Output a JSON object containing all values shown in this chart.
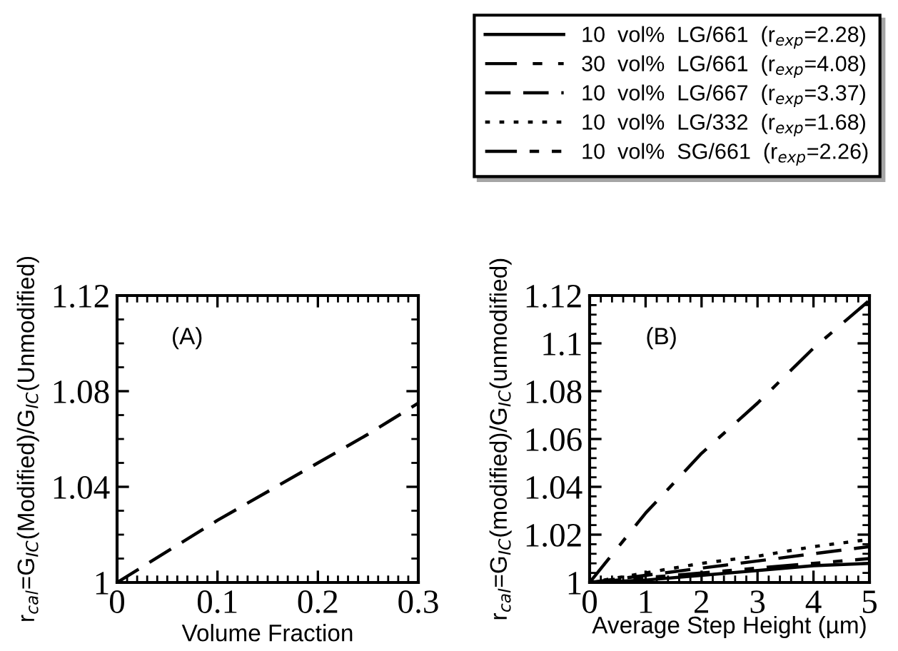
{
  "chart_data": [
    {
      "type": "line",
      "xlabel": "Volume Fraction",
      "ylabel": "r$_{cal}$=G$_{IC}$(Modified)/G$_{IC}$(Unmodified)",
      "annotations": [
        "(A)"
      ],
      "x": [
        0,
        0.05,
        0.1,
        0.15,
        0.2,
        0.25,
        0.3
      ],
      "series": [
        {
          "color": "#000000",
          "line_style": "dashed",
          "values": [
            1,
            1.013,
            1.026,
            1.038,
            1.05,
            1.062,
            1.075
          ]
        }
      ],
      "xlim": [
        0,
        0.3
      ],
      "xticks": [
        0,
        0.1,
        0.2,
        0.3
      ],
      "ylim": [
        1,
        1.12
      ],
      "yticks": [
        1,
        1.04,
        1.08,
        1.12
      ],
      "grid": false,
      "legend": false
    },
    {
      "type": "line",
      "xlabel": "Average Step Height (µm)",
      "ylabel": "r$_{cal}$=G$_{IC}$(modified)/G$_{IC}$(unmodified)",
      "annotations": [
        "(B)"
      ],
      "x": [
        0,
        1,
        2,
        3,
        4,
        5
      ],
      "series": [
        {
          "name": "10  vol%  LG/661  (r$_{exp}$=2.28)",
          "color": "#000000",
          "line_style": "solid",
          "values": [
            1,
            1.001,
            1.003,
            1.005,
            1.007,
            1.008
          ]
        },
        {
          "name": "30  vol%  LG/661  (r$_{exp}$=4.08)",
          "color": "#000000",
          "line_style": "dashdot",
          "values": [
            1,
            1.029,
            1.054,
            1.075,
            1.098,
            1.118
          ]
        },
        {
          "name": "10  vol%  LG/667  (r$_{exp}$=3.37)",
          "color": "#000000",
          "line_style": "dashed",
          "values": [
            1,
            1.003,
            1.006,
            1.009,
            1.012,
            1.015
          ]
        },
        {
          "name": "10  vol%  LG/332  (r$_{exp}$=1.68)",
          "color": "#000000",
          "line_style": "dotted",
          "values": [
            1,
            1.004,
            1.008,
            1.011,
            1.015,
            1.018
          ]
        },
        {
          "name": "10  vol%  SG/661  (r$_{exp}$=2.26)",
          "color": "#000000",
          "line_style": "dashdotdot",
          "values": [
            1,
            1.002,
            1.004,
            1.006,
            1.008,
            1.01
          ]
        }
      ],
      "xlim": [
        0,
        5
      ],
      "xticks": [
        0,
        1,
        2,
        3,
        4,
        5
      ],
      "ylim": [
        1,
        1.12
      ],
      "yticks": [
        1,
        1.02,
        1.04,
        1.06,
        1.08,
        {
          "value": 1.1,
          "label": "1.1"
        },
        1.12
      ],
      "grid": false,
      "legend": "top"
    }
  ]
}
